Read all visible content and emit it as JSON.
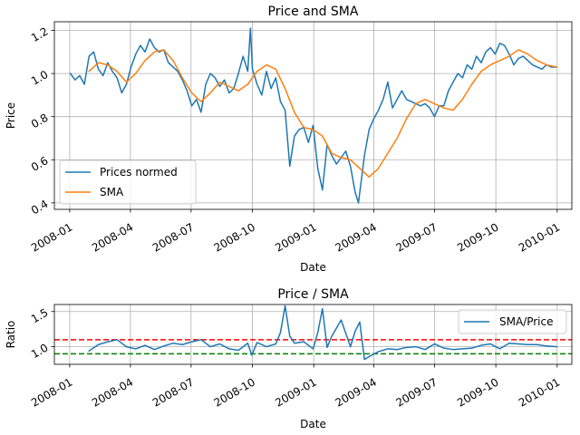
{
  "chart_data": [
    {
      "type": "line",
      "title": "Price and SMA",
      "xlabel": "Date",
      "ylabel": "Price",
      "xlim": [
        "2007-12-09",
        "2010-01-23"
      ],
      "ylim": [
        0.37,
        1.24
      ],
      "grid": true,
      "legend": "lower-left",
      "x_ticks": [
        "2008-01",
        "2008-04",
        "2008-07",
        "2008-10",
        "2009-01",
        "2009-04",
        "2009-07",
        "2009-10",
        "2010-01"
      ],
      "y_ticks": [
        "0.4",
        "0.6",
        "0.8",
        "1.0",
        "1.2"
      ],
      "series": [
        {
          "name": "Prices normed",
          "color": "#1f77b4",
          "x": [
            "2008-01-02",
            "2008-01-09",
            "2008-01-16",
            "2008-01-23",
            "2008-01-30",
            "2008-02-06",
            "2008-02-13",
            "2008-02-20",
            "2008-02-27",
            "2008-03-05",
            "2008-03-12",
            "2008-03-19",
            "2008-03-26",
            "2008-04-02",
            "2008-04-09",
            "2008-04-16",
            "2008-04-23",
            "2008-04-30",
            "2008-05-07",
            "2008-05-14",
            "2008-05-21",
            "2008-05-28",
            "2008-06-04",
            "2008-06-11",
            "2008-06-18",
            "2008-06-25",
            "2008-07-02",
            "2008-07-09",
            "2008-07-16",
            "2008-07-23",
            "2008-07-30",
            "2008-08-06",
            "2008-08-13",
            "2008-08-20",
            "2008-08-27",
            "2008-09-03",
            "2008-09-10",
            "2008-09-17",
            "2008-09-24",
            "2008-09-28",
            "2008-10-01",
            "2008-10-08",
            "2008-10-15",
            "2008-10-22",
            "2008-10-29",
            "2008-11-05",
            "2008-11-12",
            "2008-11-19",
            "2008-11-26",
            "2008-12-03",
            "2008-12-10",
            "2008-12-17",
            "2008-12-24",
            "2008-12-31",
            "2009-01-07",
            "2009-01-14",
            "2009-01-21",
            "2009-01-28",
            "2009-02-04",
            "2009-02-11",
            "2009-02-18",
            "2009-02-25",
            "2009-03-04",
            "2009-03-09",
            "2009-03-18",
            "2009-03-25",
            "2009-04-01",
            "2009-04-08",
            "2009-04-15",
            "2009-04-22",
            "2009-04-29",
            "2009-05-06",
            "2009-05-13",
            "2009-05-20",
            "2009-05-27",
            "2009-06-03",
            "2009-06-10",
            "2009-06-17",
            "2009-06-24",
            "2009-07-01",
            "2009-07-08",
            "2009-07-15",
            "2009-07-22",
            "2009-07-29",
            "2009-08-05",
            "2009-08-12",
            "2009-08-19",
            "2009-08-26",
            "2009-09-02",
            "2009-09-09",
            "2009-09-16",
            "2009-09-23",
            "2009-09-30",
            "2009-10-07",
            "2009-10-14",
            "2009-10-21",
            "2009-10-28",
            "2009-11-04",
            "2009-11-11",
            "2009-11-18",
            "2009-11-25",
            "2009-12-02",
            "2009-12-09",
            "2009-12-16",
            "2009-12-23",
            "2009-12-31"
          ],
          "values": [
            1.0,
            0.97,
            0.99,
            0.95,
            1.08,
            1.1,
            1.02,
            0.99,
            1.05,
            1.01,
            0.98,
            0.91,
            0.95,
            1.03,
            1.09,
            1.13,
            1.1,
            1.16,
            1.12,
            1.1,
            1.11,
            1.05,
            1.03,
            1.01,
            0.97,
            0.92,
            0.85,
            0.88,
            0.82,
            0.95,
            1.0,
            0.98,
            0.94,
            0.97,
            0.91,
            0.93,
            1.0,
            1.08,
            1.01,
            1.21,
            1.02,
            0.95,
            0.9,
            1.01,
            0.93,
            0.98,
            0.87,
            0.83,
            0.57,
            0.71,
            0.74,
            0.75,
            0.68,
            0.76,
            0.56,
            0.46,
            0.67,
            0.62,
            0.58,
            0.61,
            0.64,
            0.57,
            0.45,
            0.4,
            0.62,
            0.74,
            0.79,
            0.83,
            0.88,
            0.96,
            0.84,
            0.88,
            0.92,
            0.88,
            0.87,
            0.86,
            0.85,
            0.86,
            0.84,
            0.8,
            0.85,
            0.85,
            0.92,
            0.96,
            1.0,
            0.98,
            1.04,
            1.02,
            1.08,
            1.05,
            1.1,
            1.12,
            1.09,
            1.14,
            1.13,
            1.09,
            1.04,
            1.07,
            1.08,
            1.06,
            1.04,
            1.03,
            1.02,
            1.04,
            1.03,
            1.03
          ]
        },
        {
          "name": "SMA",
          "color": "#ff7f0e",
          "x": [
            "2008-01-30",
            "2008-02-13",
            "2008-02-27",
            "2008-03-12",
            "2008-03-26",
            "2008-04-09",
            "2008-04-23",
            "2008-05-07",
            "2008-05-21",
            "2008-06-04",
            "2008-06-18",
            "2008-07-02",
            "2008-07-16",
            "2008-07-30",
            "2008-08-13",
            "2008-08-27",
            "2008-09-10",
            "2008-09-24",
            "2008-10-08",
            "2008-10-22",
            "2008-11-05",
            "2008-11-19",
            "2008-12-03",
            "2008-12-17",
            "2008-12-31",
            "2009-01-14",
            "2009-01-28",
            "2009-02-11",
            "2009-02-25",
            "2009-03-11",
            "2009-03-25",
            "2009-04-08",
            "2009-04-22",
            "2009-05-06",
            "2009-05-20",
            "2009-06-03",
            "2009-06-17",
            "2009-07-01",
            "2009-07-15",
            "2009-07-29",
            "2009-08-12",
            "2009-08-26",
            "2009-09-09",
            "2009-09-23",
            "2009-10-07",
            "2009-10-21",
            "2009-11-04",
            "2009-11-18",
            "2009-12-02",
            "2009-12-16",
            "2009-12-31"
          ],
          "values": [
            1.01,
            1.05,
            1.04,
            1.01,
            0.96,
            1.0,
            1.06,
            1.1,
            1.11,
            1.06,
            0.98,
            0.91,
            0.87,
            0.91,
            0.96,
            0.94,
            0.92,
            0.95,
            1.01,
            1.04,
            1.02,
            0.93,
            0.82,
            0.75,
            0.74,
            0.71,
            0.63,
            0.61,
            0.6,
            0.56,
            0.52,
            0.56,
            0.63,
            0.7,
            0.79,
            0.86,
            0.88,
            0.86,
            0.84,
            0.83,
            0.88,
            0.95,
            1.01,
            1.04,
            1.06,
            1.08,
            1.11,
            1.09,
            1.06,
            1.04,
            1.03
          ]
        }
      ]
    },
    {
      "type": "line",
      "title": "Price / SMA",
      "xlabel": "Date",
      "ylabel": "Ratio",
      "xlim": [
        "2007-12-09",
        "2010-01-23"
      ],
      "ylim": [
        0.75,
        1.6
      ],
      "grid": true,
      "legend": "top-right",
      "x_ticks": [
        "2008-01",
        "2008-04",
        "2008-07",
        "2008-10",
        "2009-01",
        "2009-04",
        "2009-07",
        "2009-10",
        "2010-01"
      ],
      "y_ticks": [
        "1.0",
        "1.5"
      ],
      "reference_lines": [
        {
          "y": 1.1,
          "color": "#ff0000",
          "style": "dashed"
        },
        {
          "y": 0.9,
          "color": "#008000",
          "style": "dashed"
        }
      ],
      "series": [
        {
          "name": "SMA/Price",
          "color": "#1f77b4",
          "x": [
            "2008-01-30",
            "2008-02-13",
            "2008-02-27",
            "2008-03-12",
            "2008-03-26",
            "2008-04-09",
            "2008-04-23",
            "2008-05-07",
            "2008-05-21",
            "2008-06-04",
            "2008-06-18",
            "2008-07-02",
            "2008-07-16",
            "2008-07-30",
            "2008-08-13",
            "2008-08-27",
            "2008-09-10",
            "2008-09-24",
            "2008-09-30",
            "2008-10-08",
            "2008-10-22",
            "2008-11-05",
            "2008-11-12",
            "2008-11-19",
            "2008-11-26",
            "2008-12-03",
            "2008-12-17",
            "2008-12-31",
            "2009-01-07",
            "2009-01-14",
            "2009-01-21",
            "2009-01-28",
            "2009-02-11",
            "2009-02-25",
            "2009-03-04",
            "2009-03-11",
            "2009-03-18",
            "2009-03-25",
            "2009-04-08",
            "2009-04-22",
            "2009-05-06",
            "2009-05-20",
            "2009-06-03",
            "2009-06-17",
            "2009-07-01",
            "2009-07-15",
            "2009-07-29",
            "2009-08-12",
            "2009-08-26",
            "2009-09-09",
            "2009-09-23",
            "2009-10-07",
            "2009-10-21",
            "2009-11-04",
            "2009-11-18",
            "2009-12-02",
            "2009-12-16",
            "2009-12-31"
          ],
          "values": [
            0.94,
            1.03,
            1.07,
            1.1,
            1.0,
            0.97,
            1.02,
            0.96,
            1.01,
            1.05,
            1.03,
            1.07,
            1.1,
            1.0,
            1.04,
            0.97,
            0.95,
            1.05,
            0.88,
            1.06,
            1.0,
            1.04,
            1.2,
            1.58,
            1.15,
            1.05,
            1.07,
            0.97,
            1.2,
            1.54,
            0.99,
            1.15,
            1.38,
            1.0,
            1.22,
            1.35,
            0.82,
            0.86,
            0.93,
            0.97,
            0.96,
            0.99,
            1.0,
            0.96,
            1.04,
            0.98,
            0.96,
            0.97,
            0.98,
            1.02,
            1.04,
            0.97,
            1.05,
            1.04,
            1.03,
            1.03,
            1.01,
            1.0
          ]
        }
      ]
    }
  ]
}
